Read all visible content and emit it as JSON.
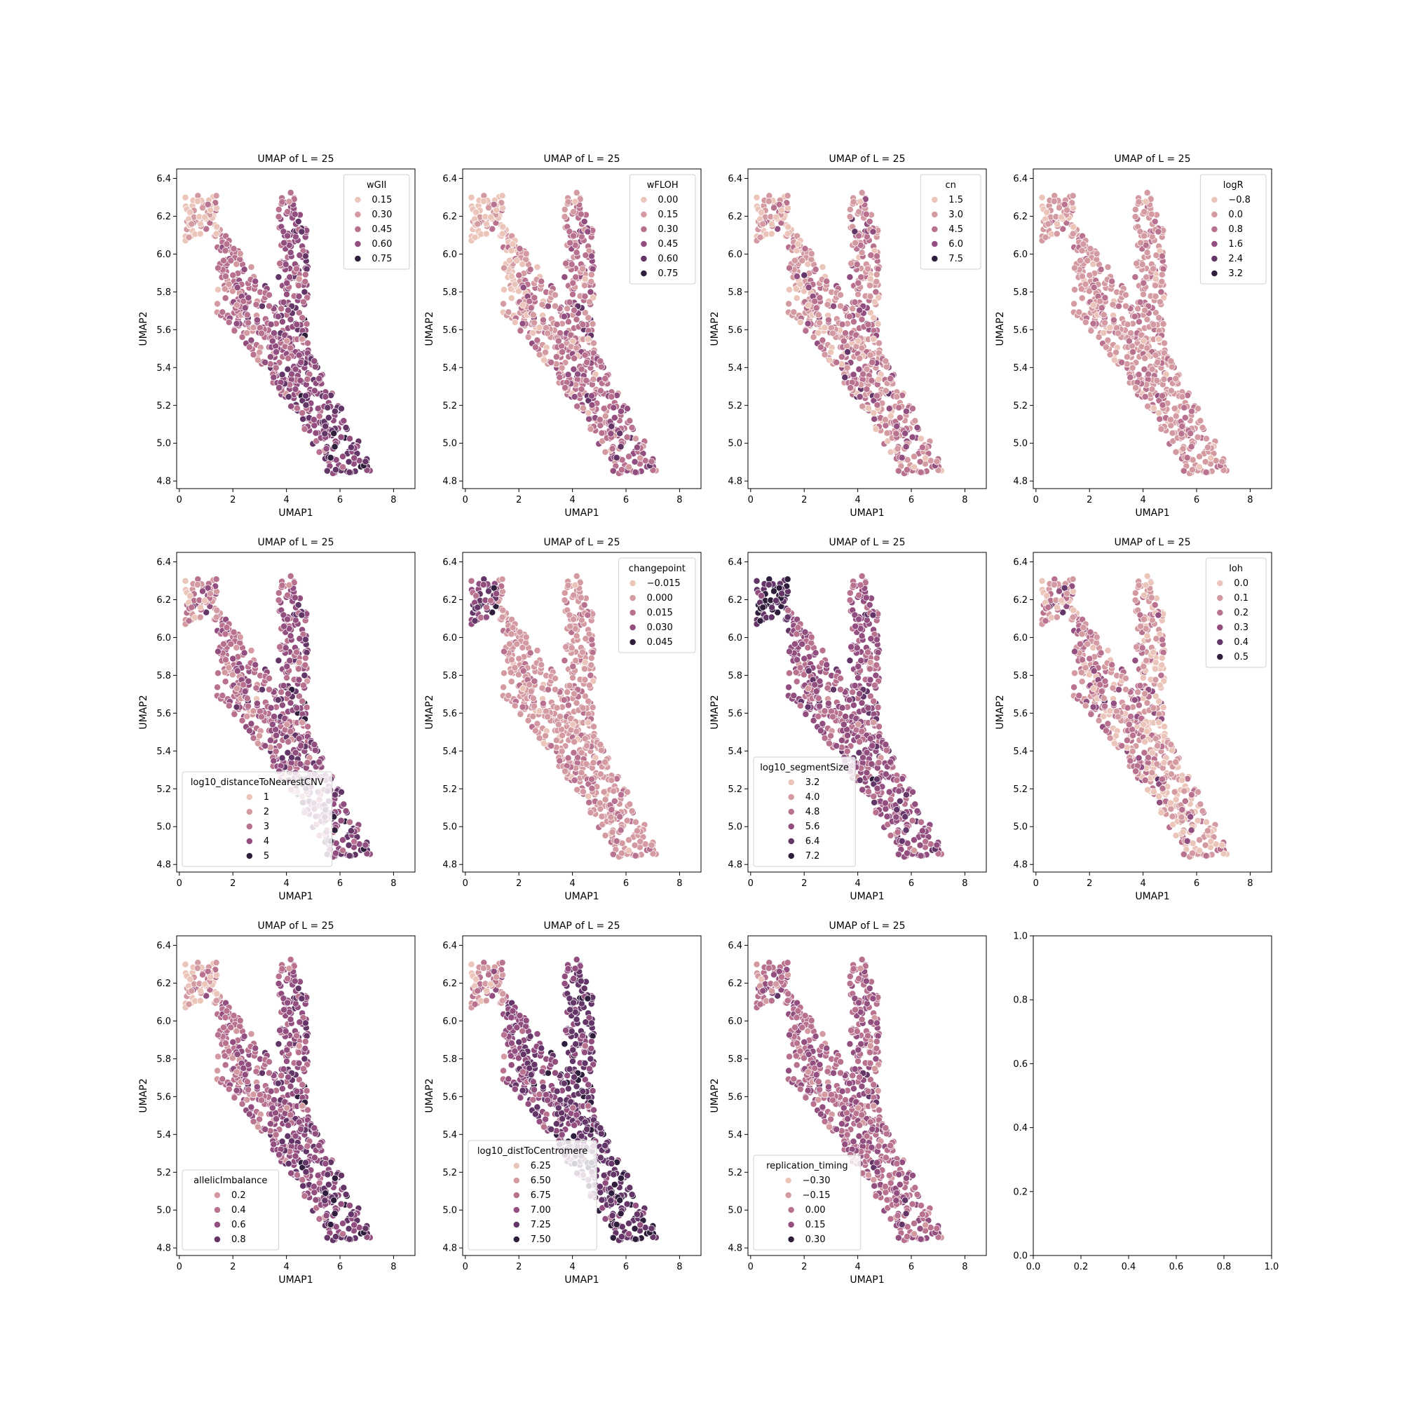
{
  "figure": {
    "layout": "3x4 grid of scatter subplots",
    "background": "#ffffff"
  },
  "palette": [
    "#ebc4ba",
    "#d49aa1",
    "#b8718f",
    "#924e7f",
    "#633667",
    "#2e1e3b"
  ],
  "chart_data": [
    {
      "type": "scatter",
      "title": "UMAP of L = 25",
      "xlabel": "UMAP1",
      "ylabel": "UMAP2",
      "xlim": [
        -0.1,
        8.8
      ],
      "ylim": [
        4.76,
        6.45
      ],
      "xticks": [
        "0",
        "2",
        "4",
        "6",
        "8"
      ],
      "yticks": [
        "4.8",
        "5.0",
        "5.2",
        "5.4",
        "5.6",
        "5.8",
        "6.0",
        "6.2",
        "6.4"
      ],
      "legend": {
        "title": "wGII",
        "placement": "upper right",
        "labels": [
          "0.15",
          "0.30",
          "0.45",
          "0.60",
          "0.75"
        ]
      },
      "points": {
        "count": 700,
        "color_mode": "wgii"
      }
    },
    {
      "type": "scatter",
      "title": "UMAP of L = 25",
      "xlabel": "UMAP1",
      "ylabel": "UMAP2",
      "xlim": [
        -0.1,
        8.8
      ],
      "ylim": [
        4.76,
        6.45
      ],
      "xticks": [
        "0",
        "2",
        "4",
        "6",
        "8"
      ],
      "yticks": [
        "4.8",
        "5.0",
        "5.2",
        "5.4",
        "5.6",
        "5.8",
        "6.0",
        "6.2",
        "6.4"
      ],
      "legend": {
        "title": "wFLOH",
        "placement": "upper right",
        "labels": [
          "0.00",
          "0.15",
          "0.30",
          "0.45",
          "0.60",
          "0.75"
        ]
      },
      "points": {
        "count": 700,
        "color_mode": "wfloh"
      }
    },
    {
      "type": "scatter",
      "title": "UMAP of L = 25",
      "xlabel": "UMAP1",
      "ylabel": "UMAP2",
      "xlim": [
        -0.1,
        8.8
      ],
      "ylim": [
        4.76,
        6.45
      ],
      "xticks": [
        "0",
        "2",
        "4",
        "6",
        "8"
      ],
      "yticks": [
        "4.8",
        "5.0",
        "5.2",
        "5.4",
        "5.6",
        "5.8",
        "6.0",
        "6.2",
        "6.4"
      ],
      "legend": {
        "title": "cn",
        "placement": "upper right",
        "labels": [
          "1.5",
          "3.0",
          "4.5",
          "6.0",
          "7.5"
        ]
      },
      "points": {
        "count": 700,
        "color_mode": "cn"
      }
    },
    {
      "type": "scatter",
      "title": "UMAP of L = 25",
      "xlabel": "UMAP1",
      "ylabel": "UMAP2",
      "xlim": [
        -0.1,
        8.8
      ],
      "ylim": [
        4.76,
        6.45
      ],
      "xticks": [
        "0",
        "2",
        "4",
        "6",
        "8"
      ],
      "yticks": [
        "4.8",
        "5.0",
        "5.2",
        "5.4",
        "5.6",
        "5.8",
        "6.0",
        "6.2",
        "6.4"
      ],
      "legend": {
        "title": "logR",
        "placement": "upper right",
        "labels": [
          "−0.8",
          "0.0",
          "0.8",
          "1.6",
          "2.4",
          "3.2"
        ]
      },
      "points": {
        "count": 700,
        "color_mode": "logr"
      }
    },
    {
      "type": "scatter",
      "title": "UMAP of L = 25",
      "xlabel": "UMAP1",
      "ylabel": "UMAP2",
      "xlim": [
        -0.1,
        8.8
      ],
      "ylim": [
        4.76,
        6.45
      ],
      "xticks": [
        "0",
        "2",
        "4",
        "6",
        "8"
      ],
      "yticks": [
        "4.8",
        "5.0",
        "5.2",
        "5.4",
        "5.6",
        "5.8",
        "6.0",
        "6.2",
        "6.4"
      ],
      "legend": {
        "title": "log10_distanceToNearestCNV",
        "placement": "lower left",
        "labels": [
          "1",
          "2",
          "3",
          "4",
          "5"
        ]
      },
      "points": {
        "count": 700,
        "color_mode": "dist"
      }
    },
    {
      "type": "scatter",
      "title": "UMAP of L = 25",
      "xlabel": "UMAP1",
      "ylabel": "UMAP2",
      "xlim": [
        -0.1,
        8.8
      ],
      "ylim": [
        4.76,
        6.45
      ],
      "xticks": [
        "0",
        "2",
        "4",
        "6",
        "8"
      ],
      "yticks": [
        "4.8",
        "5.0",
        "5.2",
        "5.4",
        "5.6",
        "5.8",
        "6.0",
        "6.2",
        "6.4"
      ],
      "legend": {
        "title": "changepoint",
        "placement": "upper right",
        "labels": [
          "−0.015",
          "0.000",
          "0.015",
          "0.030",
          "0.045"
        ]
      },
      "points": {
        "count": 700,
        "color_mode": "changepoint"
      }
    },
    {
      "type": "scatter",
      "title": "UMAP of L = 25",
      "xlabel": "UMAP1",
      "ylabel": "UMAP2",
      "xlim": [
        -0.1,
        8.8
      ],
      "ylim": [
        4.76,
        6.45
      ],
      "xticks": [
        "0",
        "2",
        "4",
        "6",
        "8"
      ],
      "yticks": [
        "4.8",
        "5.0",
        "5.2",
        "5.4",
        "5.6",
        "5.8",
        "6.0",
        "6.2",
        "6.4"
      ],
      "legend": {
        "title": "log10_segmentSize",
        "placement": "lower left",
        "labels": [
          "3.2",
          "4.0",
          "4.8",
          "5.6",
          "6.4",
          "7.2"
        ]
      },
      "points": {
        "count": 700,
        "color_mode": "segsize"
      }
    },
    {
      "type": "scatter",
      "title": "UMAP of L = 25",
      "xlabel": "UMAP1",
      "ylabel": "UMAP2",
      "xlim": [
        -0.1,
        8.8
      ],
      "ylim": [
        4.76,
        6.45
      ],
      "xticks": [
        "0",
        "2",
        "4",
        "6",
        "8"
      ],
      "yticks": [
        "4.8",
        "5.0",
        "5.2",
        "5.4",
        "5.6",
        "5.8",
        "6.0",
        "6.2",
        "6.4"
      ],
      "legend": {
        "title": "loh",
        "placement": "upper right",
        "labels": [
          "0.0",
          "0.1",
          "0.2",
          "0.3",
          "0.4",
          "0.5"
        ]
      },
      "points": {
        "count": 700,
        "color_mode": "loh"
      }
    },
    {
      "type": "scatter",
      "title": "UMAP of L = 25",
      "xlabel": "UMAP1",
      "ylabel": "UMAP2",
      "xlim": [
        -0.1,
        8.8
      ],
      "ylim": [
        4.76,
        6.45
      ],
      "xticks": [
        "0",
        "2",
        "4",
        "6",
        "8"
      ],
      "yticks": [
        "4.8",
        "5.0",
        "5.2",
        "5.4",
        "5.6",
        "5.8",
        "6.0",
        "6.2",
        "6.4"
      ],
      "legend": {
        "title": "allelicImbalance",
        "placement": "lower left",
        "labels": [
          "0.2",
          "0.4",
          "0.6",
          "0.8"
        ]
      },
      "points": {
        "count": 700,
        "color_mode": "allelic"
      }
    },
    {
      "type": "scatter",
      "title": "UMAP of L = 25",
      "xlabel": "UMAP1",
      "ylabel": "UMAP2",
      "xlim": [
        -0.1,
        8.8
      ],
      "ylim": [
        4.76,
        6.45
      ],
      "xticks": [
        "0",
        "2",
        "4",
        "6",
        "8"
      ],
      "yticks": [
        "4.8",
        "5.0",
        "5.2",
        "5.4",
        "5.6",
        "5.8",
        "6.0",
        "6.2",
        "6.4"
      ],
      "legend": {
        "title": "log10_distToCentromere",
        "placement": "lower left",
        "labels": [
          "6.25",
          "6.50",
          "6.75",
          "7.00",
          "7.25",
          "7.50"
        ]
      },
      "points": {
        "count": 700,
        "color_mode": "centromere"
      }
    },
    {
      "type": "scatter",
      "title": "UMAP of L = 25",
      "xlabel": "UMAP1",
      "ylabel": "UMAP2",
      "xlim": [
        -0.1,
        8.8
      ],
      "ylim": [
        4.76,
        6.45
      ],
      "xticks": [
        "0",
        "2",
        "4",
        "6",
        "8"
      ],
      "yticks": [
        "4.8",
        "5.0",
        "5.2",
        "5.4",
        "5.6",
        "5.8",
        "6.0",
        "6.2",
        "6.4"
      ],
      "legend": {
        "title": "replication_timing",
        "placement": "lower left",
        "labels": [
          "−0.30",
          "−0.15",
          "0.00",
          "0.15",
          "0.30"
        ]
      },
      "points": {
        "count": 700,
        "color_mode": "reptiming"
      }
    },
    {
      "type": "scatter",
      "title": "",
      "xlabel": "",
      "ylabel": "",
      "xlim": [
        0,
        1
      ],
      "ylim": [
        0,
        1
      ],
      "xticks": [
        "0.0",
        "0.2",
        "0.4",
        "0.6",
        "0.8",
        "1.0"
      ],
      "yticks": [
        "0.0",
        "0.2",
        "0.4",
        "0.6",
        "0.8",
        "1.0"
      ],
      "legend": null,
      "points": {
        "count": 0,
        "color_mode": "none"
      }
    }
  ]
}
